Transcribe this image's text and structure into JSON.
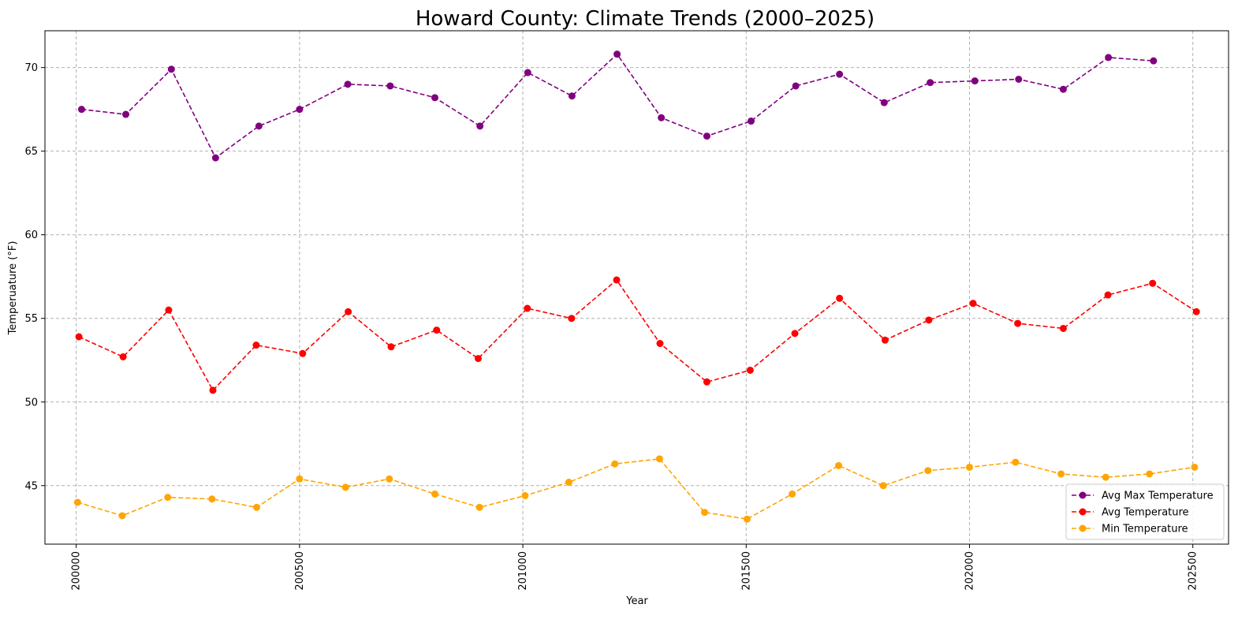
{
  "chart_data": {
    "type": "line",
    "title": "Howard County: Climate Trends (2000–2025)",
    "xlabel": "Year",
    "ylabel": "Temperuature (°F)",
    "xlim": [
      199930,
      202580
    ],
    "ylim": [
      41.5,
      72.2
    ],
    "x_ticks": [
      200000,
      200500,
      201000,
      201500,
      202000,
      202500
    ],
    "x_tick_labels": [
      "200000",
      "200500",
      "201000",
      "201500",
      "202000",
      "202500"
    ],
    "y_ticks": [
      45,
      50,
      55,
      60,
      65,
      70
    ],
    "y_tick_labels": [
      "45",
      "50",
      "55",
      "60",
      "65",
      "70"
    ],
    "grid": true,
    "legend_position": "lower-right",
    "series": [
      {
        "name": "Avg Max Temperature",
        "color": "#800080",
        "x": [
          200012,
          200111,
          200213,
          200312,
          200409,
          200500,
          200608,
          200703,
          200803,
          200904,
          201011,
          201110,
          201211,
          201310,
          201412,
          201511,
          201611,
          201709,
          201809,
          201912,
          202012,
          202110,
          202210,
          202311,
          202412
        ],
        "values": [
          67.5,
          67.2,
          69.9,
          64.6,
          66.5,
          67.5,
          69.0,
          68.9,
          68.2,
          66.5,
          69.7,
          68.3,
          70.8,
          67.0,
          65.9,
          66.8,
          68.9,
          69.6,
          67.9,
          69.1,
          69.2,
          69.3,
          68.7,
          70.6,
          70.4
        ]
      },
      {
        "name": "Avg Temperature",
        "color": "#ff0000",
        "x": [
          200006,
          200105,
          200207,
          200306,
          200403,
          200507,
          200609,
          200705,
          200807,
          200900,
          201010,
          201109,
          201210,
          201307,
          201412,
          201509,
          201609,
          201709,
          201811,
          201909,
          202008,
          202108,
          202210,
          202310,
          202410,
          202508
        ],
        "values": [
          53.9,
          52.7,
          55.5,
          50.7,
          53.4,
          52.9,
          55.4,
          53.3,
          54.3,
          52.6,
          55.6,
          55.0,
          57.3,
          53.5,
          51.2,
          51.9,
          54.1,
          56.2,
          53.7,
          54.9,
          55.9,
          54.7,
          54.4,
          56.4,
          57.1,
          55.4
        ]
      },
      {
        "name": "Min Temperature",
        "color": "#ffa500",
        "x": [
          200003,
          200103,
          200205,
          200304,
          200404,
          200500,
          200603,
          200701,
          200803,
          200903,
          201005,
          201103,
          201206,
          201306,
          201407,
          201502,
          201603,
          201707,
          201807,
          201907,
          202000,
          202103,
          202205,
          202305,
          202403,
          202504
        ],
        "values": [
          44.0,
          43.2,
          44.3,
          44.2,
          43.7,
          45.4,
          44.9,
          45.4,
          44.5,
          43.7,
          44.4,
          45.2,
          46.3,
          46.6,
          43.4,
          43.0,
          44.5,
          46.2,
          45.0,
          45.9,
          46.1,
          46.4,
          45.7,
          45.5,
          45.7,
          46.1
        ]
      }
    ]
  }
}
